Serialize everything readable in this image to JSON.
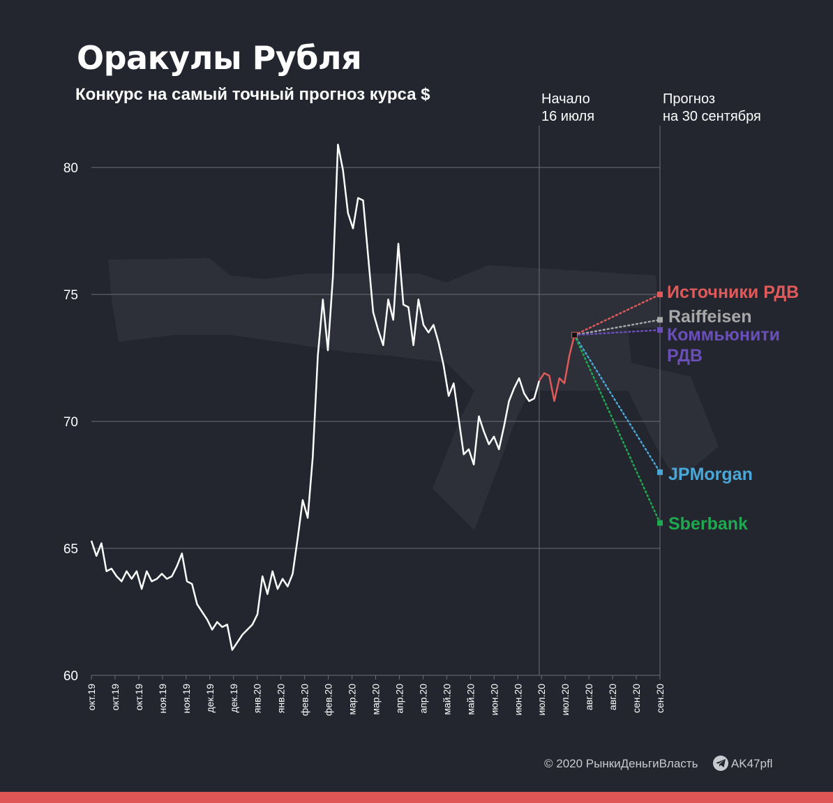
{
  "title": "Оракулы Рубля",
  "subtitle": "Конкурс на самый точный прогноз курса $",
  "markers": {
    "start": {
      "line1": "Начало",
      "line2": "16 июля"
    },
    "forecast": {
      "line1": "Прогноз",
      "line2": "на 30 сентября"
    }
  },
  "footer": {
    "copyright": "© 2020  РынкиДеньгиВласть",
    "channel": "AK47pfl"
  },
  "icons": {
    "watermark": "ak47-rifle-silhouette",
    "telegram": "telegram-plane-icon"
  },
  "colors": {
    "background": "#23262f",
    "history_line": "#ffffff",
    "recent_line": "#e05a5a",
    "grid": "#6b6e78",
    "bottom_bar": "#e05555"
  },
  "chart_data": {
    "type": "line",
    "title": "Оракулы Рубля",
    "subtitle": "Конкурс на самый точный прогноз курса $",
    "xlabel": "",
    "ylabel": "",
    "ylim": [
      60,
      80
    ],
    "y_ticks": [
      60,
      65,
      70,
      75,
      80
    ],
    "x_ticks": [
      "окт.19",
      "окт.19",
      "окт.19",
      "ноя.19",
      "ноя.19",
      "дек.19",
      "дек.19",
      "янв.20",
      "янв.20",
      "фев.20",
      "фев.20",
      "мар.20",
      "мар.20",
      "апр.20",
      "апр.20",
      "май.20",
      "май.20",
      "июн.20",
      "июн.20",
      "июл.20",
      "июл.20",
      "авг.20",
      "авг.20",
      "сен.20",
      "сен.20"
    ],
    "grid": "horizontal",
    "history": [
      [
        0,
        65.3
      ],
      [
        1,
        64.7
      ],
      [
        2,
        65.2
      ],
      [
        3,
        64.1
      ],
      [
        4,
        64.2
      ],
      [
        5,
        63.9
      ],
      [
        6,
        63.7
      ],
      [
        7,
        64.1
      ],
      [
        8,
        63.8
      ],
      [
        9,
        64.1
      ],
      [
        10,
        63.4
      ],
      [
        11,
        64.1
      ],
      [
        12,
        63.7
      ],
      [
        13,
        63.8
      ],
      [
        14,
        64.0
      ],
      [
        15,
        63.8
      ],
      [
        16,
        63.9
      ],
      [
        17,
        64.3
      ],
      [
        18,
        64.8
      ],
      [
        19,
        63.7
      ],
      [
        20,
        63.6
      ],
      [
        21,
        62.8
      ],
      [
        22,
        62.5
      ],
      [
        23,
        62.2
      ],
      [
        24,
        61.8
      ],
      [
        25,
        62.1
      ],
      [
        26,
        61.9
      ],
      [
        27,
        62.0
      ],
      [
        28,
        61.0
      ],
      [
        29,
        61.3
      ],
      [
        30,
        61.6
      ],
      [
        31,
        61.8
      ],
      [
        32,
        62.0
      ],
      [
        33,
        62.4
      ],
      [
        34,
        63.9
      ],
      [
        35,
        63.2
      ],
      [
        36,
        64.1
      ],
      [
        37,
        63.4
      ],
      [
        38,
        63.8
      ],
      [
        39,
        63.5
      ],
      [
        40,
        64.0
      ],
      [
        41,
        65.4
      ],
      [
        42,
        66.9
      ],
      [
        43,
        66.2
      ],
      [
        44,
        68.6
      ],
      [
        45,
        72.6
      ],
      [
        46,
        74.8
      ],
      [
        47,
        72.8
      ],
      [
        48,
        75.7
      ],
      [
        49,
        80.9
      ],
      [
        50,
        79.9
      ],
      [
        51,
        78.2
      ],
      [
        52,
        77.6
      ],
      [
        53,
        78.8
      ],
      [
        54,
        78.7
      ],
      [
        55,
        76.5
      ],
      [
        56,
        74.3
      ],
      [
        57,
        73.6
      ],
      [
        58,
        73.0
      ],
      [
        59,
        74.8
      ],
      [
        60,
        74.0
      ],
      [
        61,
        77.0
      ],
      [
        62,
        74.6
      ],
      [
        63,
        74.5
      ],
      [
        64,
        73.0
      ],
      [
        65,
        74.8
      ],
      [
        66,
        73.8
      ],
      [
        67,
        73.5
      ],
      [
        68,
        73.8
      ],
      [
        69,
        73.1
      ],
      [
        70,
        72.2
      ],
      [
        71,
        71.0
      ],
      [
        72,
        71.5
      ],
      [
        73,
        70.1
      ],
      [
        74,
        68.7
      ],
      [
        75,
        68.9
      ],
      [
        76,
        68.3
      ],
      [
        77,
        70.2
      ],
      [
        78,
        69.6
      ],
      [
        79,
        69.1
      ],
      [
        80,
        69.4
      ],
      [
        81,
        68.9
      ],
      [
        82,
        69.8
      ],
      [
        83,
        70.8
      ],
      [
        84,
        71.3
      ],
      [
        85,
        71.7
      ],
      [
        86,
        71.1
      ],
      [
        87,
        70.8
      ],
      [
        88,
        70.9
      ],
      [
        89,
        71.6
      ]
    ],
    "recent": [
      [
        89,
        71.6
      ],
      [
        90,
        71.9
      ],
      [
        91,
        71.8
      ],
      [
        92,
        70.8
      ],
      [
        93,
        71.7
      ],
      [
        94,
        71.5
      ],
      [
        95,
        72.6
      ],
      [
        96,
        73.4
      ]
    ],
    "x_positions": {
      "history_end": 89,
      "start_marker": 89,
      "forecast": 113
    },
    "forecasts": [
      {
        "name": "Источники РДВ",
        "value": 75.0,
        "color": "#e05a5a"
      },
      {
        "name": "Raiffeisen",
        "value": 74.0,
        "color": "#a8a8a8"
      },
      {
        "name": "Коммьюнити РДВ",
        "value": 73.6,
        "color": "#6b4fb8"
      },
      {
        "name": "JPMorgan",
        "value": 68.0,
        "color": "#4aa8d8"
      },
      {
        "name": "Sberbank",
        "value": 66.0,
        "color": "#1fa84f"
      }
    ]
  }
}
